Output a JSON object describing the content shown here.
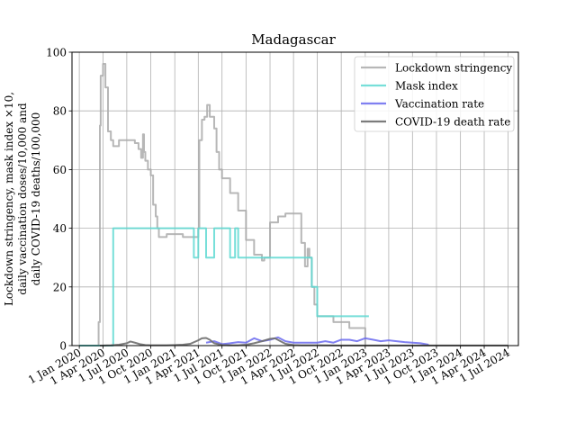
{
  "chart_data": {
    "type": "line",
    "title": "Madagascar",
    "ylabel_lines": [
      "Lockdown stringency, mask index ×10,",
      "daily vaccination doses/10,000 and",
      "daily COVID-19 deaths/100,000"
    ],
    "xlabel": "",
    "ylim": [
      0,
      100
    ],
    "xlim": [
      "2019-12-04",
      "2024-08-10"
    ],
    "grid": true,
    "legend_position": "top-right",
    "x_ticks": [
      "2020-01-01",
      "2020-04-01",
      "2020-07-01",
      "2020-10-01",
      "2021-01-01",
      "2021-04-01",
      "2021-07-01",
      "2021-10-01",
      "2022-01-01",
      "2022-04-01",
      "2022-07-01",
      "2022-10-01",
      "2023-01-01",
      "2023-04-01",
      "2023-07-01",
      "2023-10-01",
      "2024-01-01",
      "2024-04-01",
      "2024-07-01"
    ],
    "x_tick_labels": [
      "1 Jan 2020",
      "1 Apr 2020",
      "1 Jul 2020",
      "1 Oct 2020",
      "1 Jan 2021",
      "1 Apr 2021",
      "1 Jul 2021",
      "1 Oct 2021",
      "1 Jan 2022",
      "1 Apr 2022",
      "1 Jul 2022",
      "1 Oct 2022",
      "1 Jan 2023",
      "1 Apr 2023",
      "1 Jul 2023",
      "1 Oct 2023",
      "1 Jan 2024",
      "1 Apr 2024",
      "1 Jul 2024"
    ],
    "y_ticks": [
      0,
      20,
      40,
      60,
      80,
      100
    ],
    "y_tick_labels": [
      "0",
      "20",
      "40",
      "60",
      "80",
      "100"
    ],
    "series": [
      {
        "name": "Lockdown stringency",
        "color": "#aaaaaa",
        "step": true,
        "x": [
          "2020-01-01",
          "2020-03-15",
          "2020-03-20",
          "2020-03-23",
          "2020-04-01",
          "2020-04-10",
          "2020-04-20",
          "2020-05-01",
          "2020-05-10",
          "2020-05-20",
          "2020-06-01",
          "2020-08-01",
          "2020-08-15",
          "2020-08-25",
          "2020-09-01",
          "2020-09-05",
          "2020-09-10",
          "2020-09-20",
          "2020-10-01",
          "2020-10-10",
          "2020-10-20",
          "2020-10-26",
          "2020-11-01",
          "2020-11-15",
          "2020-12-01",
          "2021-01-01",
          "2021-02-01",
          "2021-03-10",
          "2021-04-01",
          "2021-04-05",
          "2021-04-15",
          "2021-04-25",
          "2021-05-05",
          "2021-05-15",
          "2021-06-01",
          "2021-06-10",
          "2021-06-20",
          "2021-07-01",
          "2021-08-01",
          "2021-09-01",
          "2021-10-01",
          "2021-11-01",
          "2021-12-01",
          "2021-12-10",
          "2022-01-01",
          "2022-02-01",
          "2022-03-01",
          "2022-05-01",
          "2022-05-15",
          "2022-05-25",
          "2022-06-01",
          "2022-06-10",
          "2022-06-20",
          "2022-07-01",
          "2022-09-01",
          "2022-11-01",
          "2023-01-01"
        ],
        "y": [
          0,
          8,
          75,
          92,
          96,
          88,
          73,
          70,
          68,
          68,
          70,
          69,
          67,
          64,
          72,
          66,
          63,
          60,
          58,
          48,
          44,
          40,
          37,
          37,
          38,
          38,
          37,
          37,
          40,
          70,
          77,
          78,
          82,
          78,
          74,
          66,
          60,
          57,
          52,
          46,
          36,
          31,
          29,
          30,
          42,
          44,
          45,
          35,
          27,
          33,
          30,
          20,
          14,
          10,
          8,
          6,
          0
        ]
      },
      {
        "name": "Mask index",
        "color": "#5fd9d2",
        "step": true,
        "x": [
          "2020-01-01",
          "2020-05-10",
          "2021-03-01",
          "2021-03-15",
          "2021-04-01",
          "2021-05-01",
          "2021-06-01",
          "2021-06-10",
          "2021-08-01",
          "2021-08-20",
          "2021-09-01",
          "2021-10-01",
          "2022-03-01",
          "2022-06-01",
          "2022-06-10",
          "2022-07-01",
          "2022-10-01",
          "2023-01-15"
        ],
        "y": [
          0,
          40,
          40,
          30,
          40,
          30,
          40,
          40,
          30,
          40,
          30,
          30,
          30,
          30,
          20,
          10,
          10,
          10
        ]
      },
      {
        "name": "Vaccination rate",
        "color": "#6a6aee",
        "step": false,
        "x": [
          "2021-05-01",
          "2021-06-01",
          "2021-07-01",
          "2021-08-01",
          "2021-09-01",
          "2021-10-01",
          "2021-11-01",
          "2021-12-01",
          "2022-01-01",
          "2022-02-01",
          "2022-03-01",
          "2022-04-01",
          "2022-05-01",
          "2022-06-01",
          "2022-07-01",
          "2022-08-01",
          "2022-09-01",
          "2022-10-01",
          "2022-11-01",
          "2022-12-01",
          "2023-01-01",
          "2023-02-01",
          "2023-03-01",
          "2023-04-01",
          "2023-05-01",
          "2023-06-01",
          "2023-07-01",
          "2023-08-01",
          "2023-09-01"
        ],
        "y": [
          1.0,
          1.5,
          0.5,
          0.8,
          1.2,
          1.0,
          2.5,
          1.5,
          2.0,
          2.8,
          1.5,
          1.0,
          1.0,
          1.0,
          1.0,
          1.5,
          1.0,
          2.0,
          2.0,
          1.5,
          2.5,
          2.0,
          1.5,
          1.8,
          1.5,
          1.2,
          1.0,
          0.8,
          0.3
        ]
      },
      {
        "name": "COVID-19 death rate",
        "color": "#6e6e6e",
        "step": false,
        "x": [
          "2020-03-20",
          "2020-05-01",
          "2020-06-01",
          "2020-07-01",
          "2020-07-15",
          "2020-08-01",
          "2020-08-20",
          "2020-09-10",
          "2020-10-01",
          "2020-11-01",
          "2020-12-01",
          "2021-01-01",
          "2021-02-01",
          "2021-03-01",
          "2021-04-01",
          "2021-04-15",
          "2021-05-01",
          "2021-05-15",
          "2021-06-01",
          "2021-07-01",
          "2021-08-01",
          "2021-09-01",
          "2021-10-01",
          "2021-11-01",
          "2021-12-01",
          "2022-01-01",
          "2022-01-20",
          "2022-02-10",
          "2022-03-01",
          "2022-04-01",
          "2022-05-01",
          "2022-07-01",
          "2022-10-01",
          "2023-01-01",
          "2023-04-01",
          "2023-07-01",
          "2023-10-01",
          "2024-01-01",
          "2024-04-01",
          "2024-07-01"
        ],
        "y": [
          0,
          0.1,
          0.3,
          0.8,
          1.4,
          1.0,
          0.5,
          0.2,
          0.1,
          0.1,
          0.1,
          0.2,
          0.3,
          0.6,
          1.8,
          2.5,
          2.6,
          2.0,
          0.8,
          0.2,
          0.1,
          0.1,
          0.3,
          0.8,
          1.5,
          2.3,
          2.5,
          1.5,
          0.6,
          0.2,
          0.1,
          0.1,
          0.05,
          0.05,
          0.05,
          0.03,
          0.02,
          0.02,
          0.02,
          0.02
        ]
      }
    ]
  }
}
